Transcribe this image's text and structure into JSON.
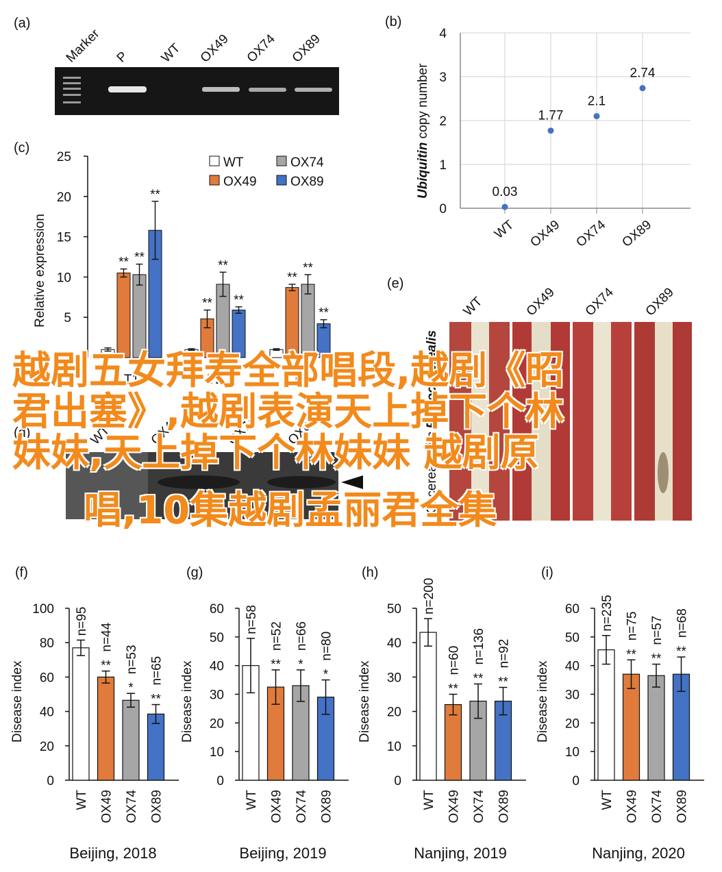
{
  "colors": {
    "wt": "#ffffff",
    "ox49": "#e07b3c",
    "ox74": "#a6a6a6",
    "ox89": "#4472c4",
    "scatter": "#4472c4",
    "overlay": "#f28a1c"
  },
  "panels": {
    "a": {
      "letter": "(a)",
      "lanes": [
        "Marker",
        "P",
        "WT",
        "OX49",
        "OX74",
        "OX89"
      ]
    },
    "b": {
      "letter": "(b)"
    },
    "c": {
      "letter": "(c)"
    },
    "d": {
      "letter": "(d)",
      "lanes": [
        "WT",
        "OX49",
        "OX74",
        "OX89"
      ]
    },
    "e": {
      "letter": "(e)",
      "labels": [
        "WT",
        "OX49",
        "OX74",
        "OX89"
      ],
      "side_label": "C. cereal. with",
      "side_italic": "Rhizoc. cerealis"
    }
  },
  "chart_data": [
    {
      "id": "b",
      "type": "scatter",
      "ylabel_italic": "Ubiquitin",
      "ylabel_rest": " copy number",
      "categories": [
        "WT",
        "OX49",
        "OX74",
        "OX89"
      ],
      "values": [
        0.03,
        1.77,
        2.1,
        2.74
      ],
      "value_labels": [
        "0.03",
        "1.77",
        "2.1",
        "2.74"
      ],
      "ylim": [
        0,
        4
      ],
      "yticks": [
        "0",
        "1",
        "2",
        "3",
        "4"
      ],
      "grid": true
    },
    {
      "id": "c",
      "type": "bar",
      "ylabel": "Relative expression",
      "categories": [
        "T1",
        "T2",
        "T3"
      ],
      "ylim": [
        0,
        25
      ],
      "yticks": [
        "5",
        "10",
        "15",
        "20",
        "25"
      ],
      "legend": [
        "WT",
        "OX74",
        "OX49",
        "OX89"
      ],
      "legend_position": "top-right",
      "series": [
        {
          "name": "WT",
          "values": [
            1.0,
            1.0,
            1.0
          ],
          "errors": [
            0.2,
            0.1,
            0.1
          ],
          "stars": [
            "",
            "",
            ""
          ]
        },
        {
          "name": "OX49",
          "values": [
            10.5,
            4.8,
            8.7
          ],
          "errors": [
            0.5,
            1.1,
            0.4
          ],
          "stars": [
            "**",
            "**",
            "**"
          ]
        },
        {
          "name": "OX74",
          "values": [
            10.3,
            9.1,
            9.1
          ],
          "errors": [
            1.3,
            1.5,
            1.2
          ],
          "stars": [
            "**",
            "**",
            "**"
          ]
        },
        {
          "name": "OX89",
          "values": [
            15.8,
            5.9,
            4.2
          ],
          "errors": [
            3.6,
            0.4,
            0.5
          ],
          "stars": [
            "**",
            "**",
            "**"
          ]
        }
      ]
    },
    {
      "id": "f",
      "type": "bar",
      "letter": "(f)",
      "ylabel": "Disease index",
      "caption": "Beijing, 2018",
      "categories": [
        "WT",
        "OX49",
        "OX74",
        "OX89"
      ],
      "values": [
        77,
        60,
        46.5,
        38.5
      ],
      "errors": [
        4.5,
        3.5,
        4,
        5.5
      ],
      "n": [
        "n=95",
        "n=44",
        "n=53",
        "n=65"
      ],
      "stars": [
        "",
        "**",
        "*",
        "**"
      ],
      "ylim": [
        0,
        100
      ],
      "yticks": [
        "0",
        "20",
        "40",
        "60",
        "80",
        "100"
      ]
    },
    {
      "id": "g",
      "type": "bar",
      "letter": "(g)",
      "ylabel": "Disease index",
      "caption": "Beijing, 2019",
      "categories": [
        "WT",
        "OX49",
        "OX74",
        "OX89"
      ],
      "values": [
        40,
        32.5,
        33,
        29
      ],
      "errors": [
        9.5,
        6,
        5.5,
        6
      ],
      "n": [
        "n=58",
        "n=52",
        "n=66",
        "n=80"
      ],
      "stars": [
        "",
        "**",
        "*",
        "*"
      ],
      "ylim": [
        0,
        60
      ],
      "yticks": [
        "0",
        "10",
        "20",
        "30",
        "40",
        "50",
        "60"
      ]
    },
    {
      "id": "h",
      "type": "bar",
      "letter": "(h)",
      "ylabel": "Disease index",
      "caption": "Nanjing, 2019",
      "categories": [
        "WT",
        "OX49",
        "OX74",
        "OX89"
      ],
      "values": [
        43,
        22,
        23,
        23
      ],
      "errors": [
        4,
        3,
        5,
        4
      ],
      "n": [
        "n=200",
        "n=60",
        "n=136",
        "n=92"
      ],
      "stars": [
        "",
        "**",
        "**",
        "**"
      ],
      "ylim": [
        0,
        50
      ],
      "yticks": [
        "0",
        "10",
        "20",
        "30",
        "40",
        "50"
      ]
    },
    {
      "id": "i",
      "type": "bar",
      "letter": "(i)",
      "ylabel": "Disease index",
      "caption": "Nanjing, 2020",
      "categories": [
        "WT",
        "OX49",
        "OX74",
        "OX89"
      ],
      "values": [
        45.5,
        37,
        36.5,
        37
      ],
      "errors": [
        5,
        5,
        4,
        6
      ],
      "n": [
        "n=235",
        "n=75",
        "n=57",
        "n=68"
      ],
      "stars": [
        "",
        "**",
        "**",
        "**"
      ],
      "ylim": [
        0,
        60
      ],
      "yticks": [
        "0",
        "10",
        "20",
        "30",
        "40",
        "50",
        "60"
      ]
    }
  ],
  "overlay": {
    "lines": [
      "越剧五女拜寿全部唱段,越剧《昭",
      "君出塞》,越剧表演天上掉下个林",
      "妹妹,天上掉下个林妹妹 越剧原",
      "唱,10集越剧孟丽君全集"
    ]
  }
}
